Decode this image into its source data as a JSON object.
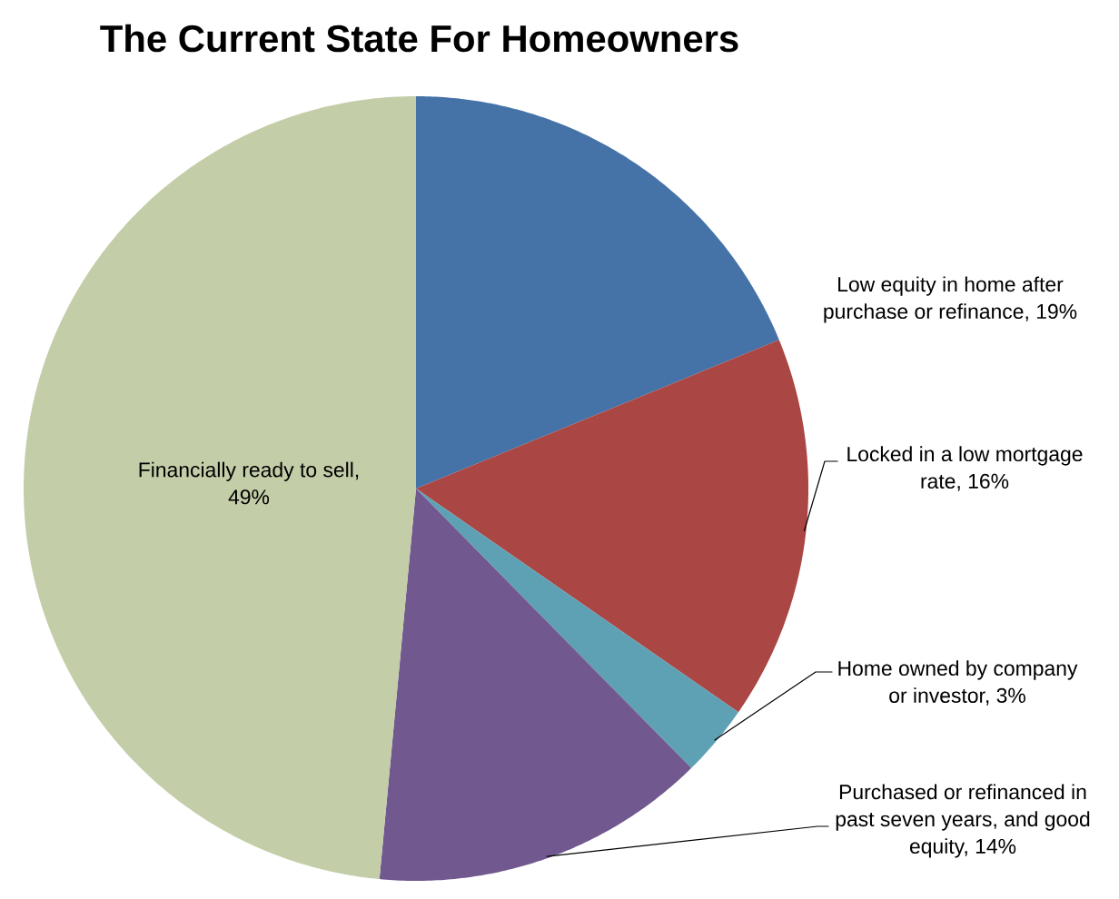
{
  "chart_data": {
    "type": "pie",
    "title": "The Current State For Homeowners",
    "categories": [
      "Low equity in home after purchase or refinance, 19%",
      "Locked in a low mortgage rate, 16%",
      "Home owned by company or investor, 3%",
      "Purchased or refinanced in past seven years, and good equity, 14%",
      "Financially ready to sell, 49%"
    ],
    "values": [
      19,
      16,
      3,
      14,
      49
    ],
    "colors": [
      "#4572a7",
      "#aa4643",
      "#5fa1b4",
      "#71588f",
      "#c3cea8"
    ]
  }
}
